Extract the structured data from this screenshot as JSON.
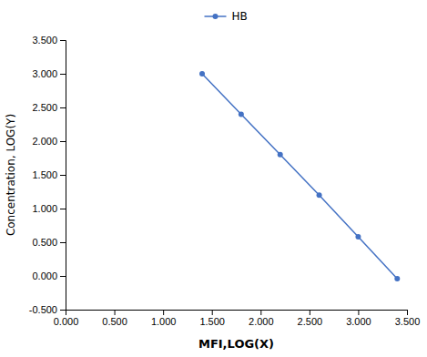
{
  "chart_data": {
    "type": "line",
    "x": [
      1.4,
      1.8,
      2.2,
      2.6,
      3.0,
      3.4
    ],
    "series": [
      {
        "name": "HB",
        "color": "#4472C4",
        "marker": "circle",
        "values": [
          3.0,
          2.4,
          1.8,
          1.2,
          0.58,
          -0.04
        ]
      }
    ],
    "xlabel": "MFI,LOG(X)",
    "ylabel": "Concentration, LOG(Y)",
    "xlim": [
      0.0,
      3.5
    ],
    "ylim": [
      -0.5,
      3.5
    ],
    "xticks": [
      {
        "value": 0.0,
        "label": "0.000"
      },
      {
        "value": 0.5,
        "label": "0.500"
      },
      {
        "value": 1.0,
        "label": "1.000"
      },
      {
        "value": 1.5,
        "label": "1.500"
      },
      {
        "value": 2.0,
        "label": "2.000"
      },
      {
        "value": 2.5,
        "label": "2.500"
      },
      {
        "value": 3.0,
        "label": "3.000"
      },
      {
        "value": 3.5,
        "label": "3.500"
      }
    ],
    "yticks": [
      {
        "value": -0.5,
        "label": "-0.500"
      },
      {
        "value": 0.0,
        "label": "0.000"
      },
      {
        "value": 0.5,
        "label": "0.500"
      },
      {
        "value": 1.0,
        "label": "1.000"
      },
      {
        "value": 1.5,
        "label": "1.500"
      },
      {
        "value": 2.0,
        "label": "2.000"
      },
      {
        "value": 2.5,
        "label": "2.500"
      },
      {
        "value": 3.0,
        "label": "3.000"
      },
      {
        "value": 3.5,
        "label": "3.500"
      }
    ],
    "grid": false,
    "legend": "top"
  }
}
